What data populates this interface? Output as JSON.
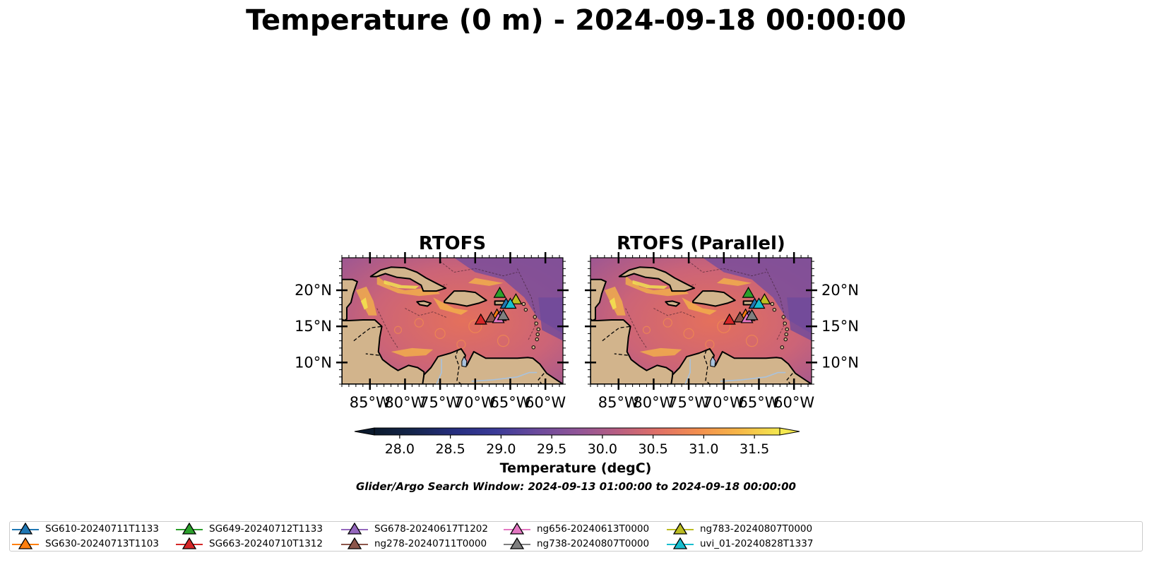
{
  "title": "Temperature (0 m) - 2024-09-18 00:00:00",
  "panels": [
    {
      "title": "RTOFS"
    },
    {
      "title": "RTOFS (Parallel)"
    }
  ],
  "map": {
    "lon_range": [
      -89,
      -57.5
    ],
    "lat_range": [
      7,
      24.5
    ],
    "lat_ticks": [
      "20°N",
      "15°N",
      "10°N"
    ],
    "lon_ticks": [
      "85°W",
      "80°W",
      "75°W",
      "70°W",
      "65°W",
      "60°W"
    ],
    "land_color": "#d2b48c",
    "coast_color": "#000000"
  },
  "colorbar": {
    "label": "Temperature (degC)",
    "ticks": [
      "28.0",
      "28.5",
      "29.0",
      "29.5",
      "30.0",
      "30.5",
      "31.0",
      "31.5"
    ],
    "range": [
      27.75,
      31.75
    ],
    "extend": "both",
    "colormap": "thermal"
  },
  "search_window": "Glider/Argo Search Window: 2024-09-13 01:00:00 to 2024-09-18 00:00:00",
  "legend": {
    "items": [
      {
        "label": "SG610-20240711T1133",
        "color": "#1f77b4"
      },
      {
        "label": "SG630-20240713T1103",
        "color": "#ff7f0e"
      },
      {
        "label": "SG649-20240712T1133",
        "color": "#2ca02c"
      },
      {
        "label": "SG663-20240710T1312",
        "color": "#d62728"
      },
      {
        "label": "SG678-20240617T1202",
        "color": "#9467bd"
      },
      {
        "label": "ng278-20240711T0000",
        "color": "#8c564b"
      },
      {
        "label": "ng656-20240613T0000",
        "color": "#e377c2"
      },
      {
        "label": "ng738-20240807T0000",
        "color": "#7f7f7f"
      },
      {
        "label": "ng783-20240807T0000",
        "color": "#bcbd22"
      },
      {
        "label": "uvi_01-20240828T1337",
        "color": "#17becf"
      }
    ]
  },
  "markers": [
    {
      "glider": "SG610-20240711T1133",
      "lon": -65.6,
      "lat": 18.1
    },
    {
      "glider": "SG630-20240713T1103",
      "lon": -66.9,
      "lat": 16.6
    },
    {
      "glider": "SG649-20240712T1133",
      "lon": -66.5,
      "lat": 19.6
    },
    {
      "glider": "SG663-20240710T1312",
      "lon": -69.2,
      "lat": 15.9
    },
    {
      "glider": "SG678-20240617T1202",
      "lon": -66.4,
      "lat": 16.4
    },
    {
      "glider": "ng278-20240711T0000",
      "lon": -67.7,
      "lat": 16.2
    },
    {
      "glider": "ng656-20240613T0000",
      "lon": -66.7,
      "lat": 16.1
    },
    {
      "glider": "ng738-20240807T0000",
      "lon": -66.0,
      "lat": 16.5
    },
    {
      "glider": "ng783-20240807T0000",
      "lon": -64.2,
      "lat": 18.7
    },
    {
      "glider": "uvi_01-20240828T1337",
      "lon": -65.0,
      "lat": 18.1
    }
  ]
}
